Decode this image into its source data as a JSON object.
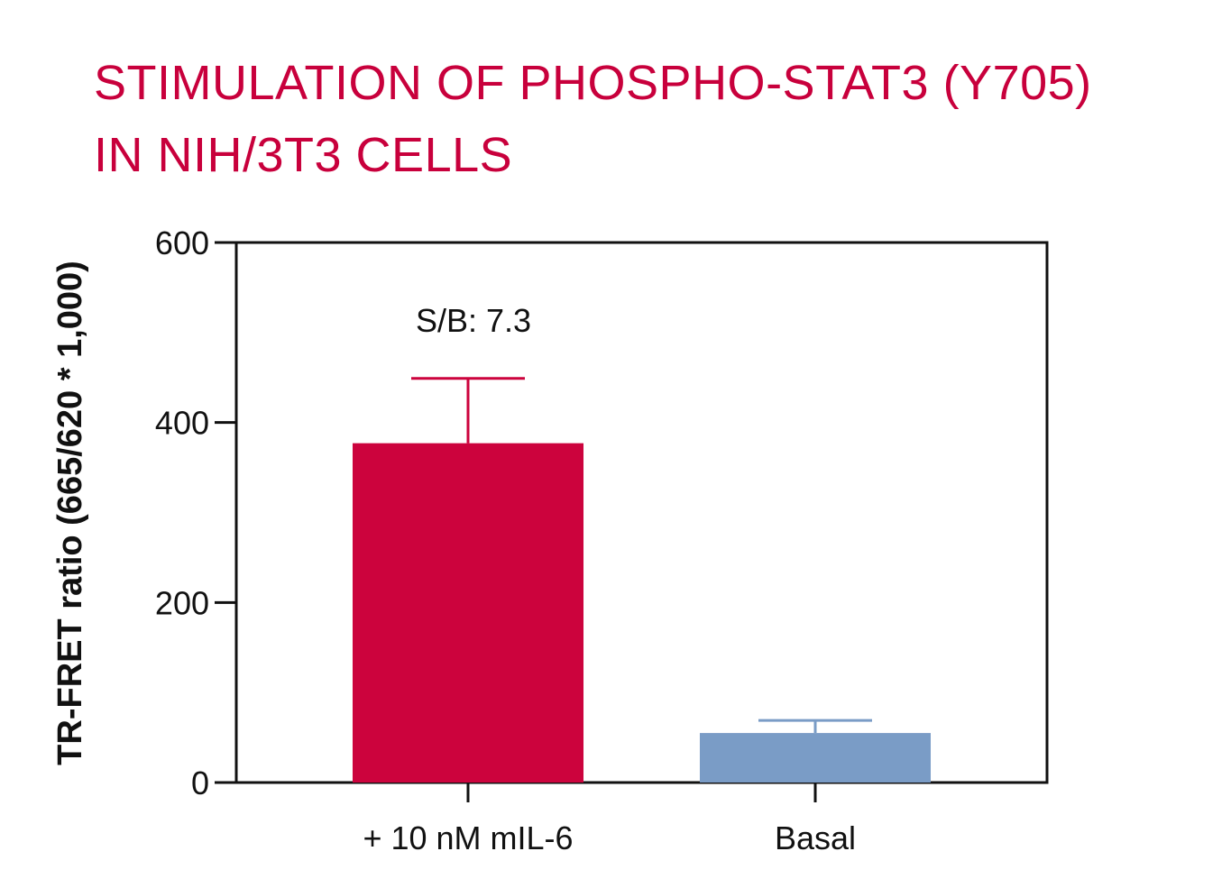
{
  "chart_data": {
    "type": "bar",
    "title_lines": [
      "STIMULATION OF PHOSPHO-STAT3 (Y705)",
      "IN NIH/3T3 CELLS"
    ],
    "ylabel": "TR-FRET ratio (665/620 * 1,000)",
    "xlabel": "",
    "ylim": [
      0,
      600
    ],
    "yticks": [
      0,
      200,
      400,
      600
    ],
    "categories": [
      "+ 10 nM mIL-6",
      "Basal"
    ],
    "values": [
      377,
      55
    ],
    "error_upper": [
      449,
      69
    ],
    "colors": [
      "#cc033d",
      "#7a9cc6"
    ],
    "title_color": "#c8003c",
    "annotation": "S/B: 7.3",
    "grid": false
  }
}
